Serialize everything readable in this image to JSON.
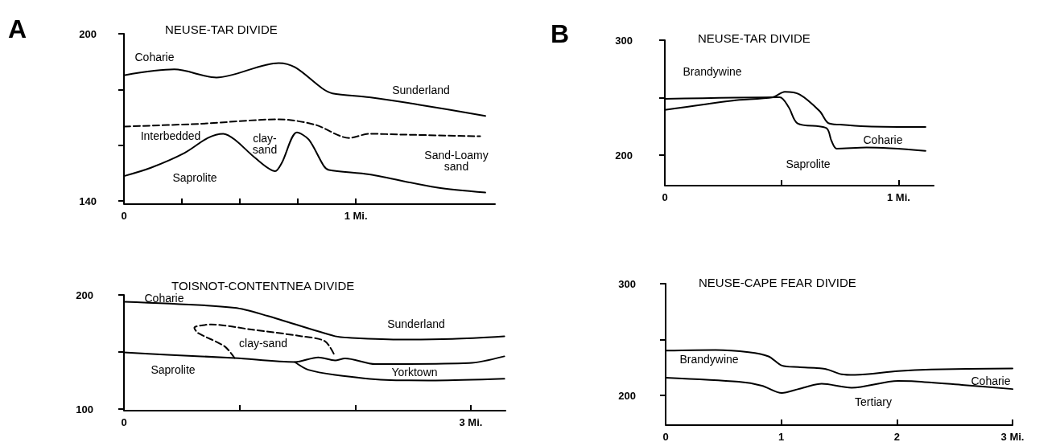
{
  "chart_data": [
    {
      "type": "line",
      "title": "NEUSE-TAR DIVIDE",
      "annotations": [
        "A",
        "Coharie",
        "Sunderland",
        "Interbedded",
        "clay-\nsand",
        "Sand-Loamy\nsand",
        "Saprolite"
      ],
      "xlim": [
        0,
        1.6
      ],
      "xticks": [
        0,
        {
          "value": 0.25,
          "label": null
        },
        {
          "value": 0.5,
          "label": null
        },
        {
          "value": 0.75,
          "label": null
        },
        {
          "value": 1,
          "label": "1 Mi."
        }
      ],
      "ylim": [
        140,
        200
      ],
      "yticks": [
        200,
        {
          "value": 180,
          "label": null
        },
        {
          "value": 160,
          "label": null
        },
        140
      ],
      "marker": "none",
      "line_style": "solid",
      "series": [
        {
          "color": "#000000",
          "x": [
            0,
            0.217,
            0.399,
            0.667,
            0.739,
            0.855,
            0.899,
            1.058,
            1.275,
            1.558
          ],
          "values": [
            185.1,
            187.2,
            184.3,
            189.5,
            187.9,
            180.4,
            178.6,
            177.2,
            174.5,
            170.5
          ]
        },
        {
          "color": "#000000",
          "line_style": "dashed",
          "x": [
            0,
            0.333,
            0.667,
            0.826,
            0.971,
            1.058,
            1.203,
            1.536
          ],
          "values": [
            166.7,
            167.7,
            169.3,
            167.3,
            162.6,
            164.1,
            163.8,
            163.2
          ]
        },
        {
          "color": "#000000",
          "x": [
            0,
            0.116,
            0.261,
            0.362,
            0.428,
            0.478,
            0.565,
            0.652,
            0.681,
            0.746,
            0.797,
            0.862,
            0.884,
            1.058,
            1.348,
            1.558
          ],
          "values": [
            148.9,
            151.9,
            157.2,
            162.6,
            164.1,
            162,
            155.5,
            150.7,
            153.7,
            164.6,
            162,
            152.5,
            151.1,
            149.5,
            144.8,
            143
          ]
        }
      ]
    },
    {
      "type": "line",
      "title": "TOISNOT-CONTENTNEA DIVIDE",
      "annotations": [
        "Coharie",
        "Sunderland",
        "clay-sand",
        "Saprolite",
        "Yorktown"
      ],
      "xlim": [
        0,
        3.3
      ],
      "xticks": [
        0,
        {
          "value": 1,
          "label": null
        },
        {
          "value": 2,
          "label": null
        },
        {
          "value": 3,
          "label": "3 Mi."
        }
      ],
      "ylim": [
        100,
        200
      ],
      "yticks": [
        200,
        {
          "value": 150,
          "label": null
        },
        100
      ],
      "marker": "none",
      "line_style": "solid",
      "series": [
        {
          "color": "#000000",
          "x": [
            0,
            0.957,
            1.246,
            1.826,
            1.971,
            2.406,
            2.841,
            3.29
          ],
          "values": [
            194.1,
            188.8,
            181.5,
            163.8,
            162.4,
            160.9,
            161.5,
            163.8
          ]
        },
        {
          "color": "#000000",
          "line_style": "dashed",
          "x": [
            0.957,
            0.87,
            0.638,
            0.609,
            0.754,
            1.101,
            1.536,
            1.739,
            1.826
          ],
          "values": [
            144.7,
            155,
            166.8,
            171.2,
            174.1,
            169.7,
            163.8,
            159.4,
            146.2
          ]
        },
        {
          "color": "#000000",
          "x": [
            0,
            0.377,
            0.957,
            1.478,
            1.681,
            1.826,
            1.913,
            2.174,
            2.986,
            3.29
          ],
          "values": [
            149.7,
            147.6,
            144.7,
            141.2,
            145.3,
            142.6,
            144.4,
            139.4,
            140.3,
            146.2
          ]
        },
        {
          "color": "#000000",
          "x": [
            1.478,
            1.594,
            1.826,
            2.261,
            2.696,
            3.29
          ],
          "values": [
            141.2,
            134.4,
            130,
            125.6,
            125,
            126.5
          ]
        }
      ]
    },
    {
      "type": "line",
      "title": "NEUSE-TAR DIVIDE",
      "annotations": [
        "B",
        "Brandywine",
        "Coharie",
        "Saprolite"
      ],
      "xlim": [
        0,
        1.15
      ],
      "xticks": [
        0,
        {
          "value": 0.5,
          "label": null
        },
        {
          "value": 1,
          "label": "1 Mi."
        }
      ],
      "ylim": [
        175,
        300
      ],
      "yticks": [
        300,
        {
          "value": 250,
          "label": null
        },
        200
      ],
      "marker": "none",
      "line_style": "solid",
      "series": [
        {
          "color": "#000000",
          "x": [
            0,
            0.491,
            0.53,
            0.568,
            0.691,
            0.713,
            0.735,
            0.863,
            1.115
          ],
          "values": [
            249,
            250.4,
            241.7,
            227.7,
            223.6,
            212.5,
            205.8,
            206.7,
            203.8
          ]
        },
        {
          "color": "#000000",
          "x": [
            0,
            0.29,
            0.462,
            0.513,
            0.577,
            0.663,
            0.699,
            0.749,
            0.863,
            1.115
          ],
          "values": [
            239.4,
            247.5,
            250.4,
            255.1,
            252.8,
            238.2,
            228,
            226.6,
            225.1,
            224.5
          ]
        }
      ]
    },
    {
      "type": "line",
      "title": "NEUSE-CAPE FEAR DIVIDE",
      "annotations": [
        "Brandywine",
        "Coharie",
        "Tertiary"
      ],
      "xlim": [
        0,
        3
      ],
      "xticks": [
        0,
        1,
        2,
        {
          "value": 3,
          "label": "3 Mi."
        }
      ],
      "ylim": [
        175,
        300
      ],
      "yticks": [
        300,
        {
          "value": 250,
          "label": null
        },
        200
      ],
      "marker": "none",
      "line_style": "solid",
      "series": [
        {
          "color": "#000000",
          "x": [
            0,
            0.431,
            0.718,
            0.89,
            1.005,
            1.148,
            1.378,
            1.522,
            1.637,
            2.01,
            2.297,
            3
          ],
          "values": [
            240.2,
            240.8,
            238.8,
            235,
            226.8,
            225.4,
            223.9,
            219,
            218.4,
            221.9,
            223.3,
            224.2
          ]
        },
        {
          "color": "#000000",
          "x": [
            0,
            0.632,
            0.833,
            1.005,
            1.148,
            1.349,
            1.608,
            2.01,
            2.153,
            2.584,
            3
          ],
          "values": [
            216,
            212.3,
            208.8,
            202.3,
            205.8,
            210.5,
            207,
            213.1,
            212.8,
            209.3,
            205.8
          ]
        }
      ]
    }
  ]
}
